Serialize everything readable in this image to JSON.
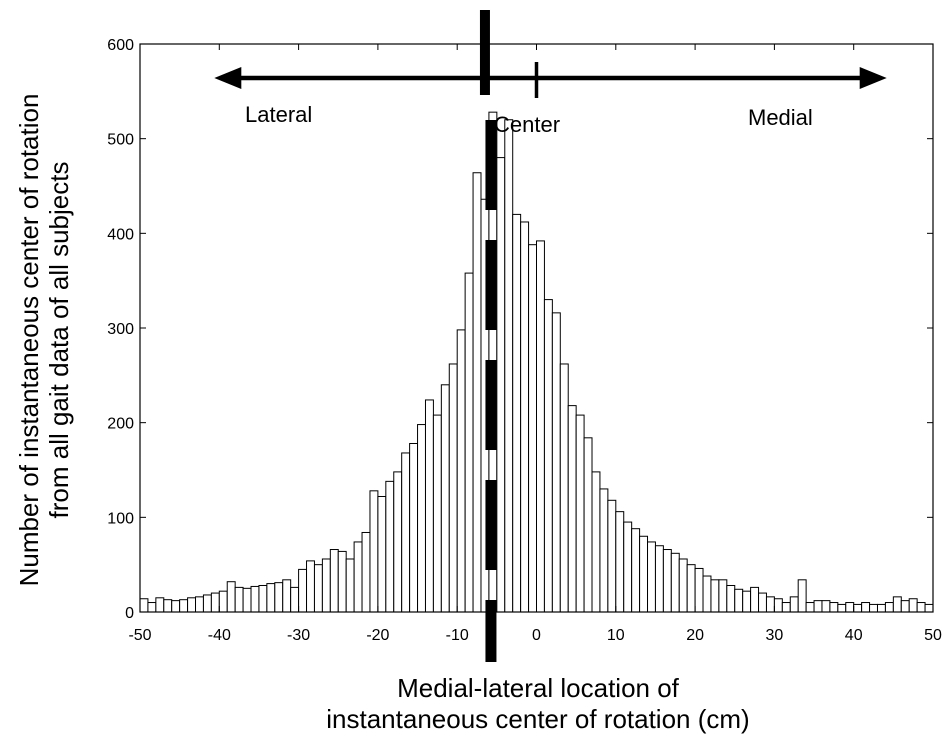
{
  "chart_data": {
    "type": "bar",
    "xlabel_line1": "Medial-lateral location of",
    "xlabel_line2": "instantaneous center of rotation (cm)",
    "ylabel_line1": "Number of instantaneous center of rotation",
    "ylabel_line2": "from all gait data of all subjects",
    "xlim": [
      -50,
      50
    ],
    "ylim": [
      0,
      600
    ],
    "bin_width": 1,
    "x_ticks": [
      -50,
      -40,
      -30,
      -20,
      -10,
      0,
      10,
      20,
      30,
      40,
      50
    ],
    "y_ticks": [
      0,
      100,
      200,
      300,
      400,
      500,
      600
    ],
    "x_tick_labels": [
      "-50",
      "-40",
      "-30",
      "-20",
      "-10",
      "0",
      "10",
      "20",
      "30",
      "40",
      "50"
    ],
    "y_tick_labels": [
      "0",
      "100",
      "200",
      "300",
      "400",
      "500",
      "600"
    ],
    "bin_starts": [
      -50,
      -49,
      -48,
      -47,
      -46,
      -45,
      -44,
      -43,
      -42,
      -41,
      -40,
      -39,
      -38,
      -37,
      -36,
      -35,
      -34,
      -33,
      -32,
      -31,
      -30,
      -29,
      -28,
      -27,
      -26,
      -25,
      -24,
      -23,
      -22,
      -21,
      -20,
      -19,
      -18,
      -17,
      -16,
      -15,
      -14,
      -13,
      -12,
      -11,
      -10,
      -9,
      -8,
      -7,
      -6,
      -5,
      -4,
      -3,
      -2,
      -1,
      0,
      1,
      2,
      3,
      4,
      5,
      6,
      7,
      8,
      9,
      10,
      11,
      12,
      13,
      14,
      15,
      16,
      17,
      18,
      19,
      20,
      21,
      22,
      23,
      24,
      25,
      26,
      27,
      28,
      29,
      30,
      31,
      32,
      33,
      34,
      35,
      36,
      37,
      38,
      39,
      40,
      41,
      42,
      43,
      44,
      45,
      46,
      47,
      48,
      49
    ],
    "values": [
      14,
      10,
      15,
      13,
      12,
      13,
      15,
      16,
      18,
      20,
      22,
      32,
      26,
      25,
      27,
      28,
      30,
      31,
      34,
      26,
      45,
      54,
      50,
      56,
      66,
      64,
      56,
      74,
      84,
      128,
      122,
      138,
      148,
      168,
      178,
      198,
      224,
      208,
      240,
      262,
      298,
      358,
      464,
      436,
      528,
      480,
      520,
      420,
      412,
      388,
      392,
      330,
      316,
      262,
      218,
      208,
      184,
      148,
      130,
      118,
      106,
      95,
      88,
      80,
      74,
      70,
      66,
      62,
      56,
      50,
      46,
      38,
      34,
      34,
      28,
      24,
      22,
      26,
      20,
      16,
      14,
      10,
      16,
      34,
      10,
      12,
      12,
      10,
      8,
      10,
      8,
      10,
      8,
      8,
      10,
      16,
      12,
      14,
      10,
      8
    ],
    "annotations": {
      "lateral": "Lateral",
      "center": "Center",
      "medial": "Medial"
    },
    "arrow_range_cm": [
      -40,
      40
    ],
    "center_tick_cm": 0,
    "dashed_line_cm": -6.5
  }
}
